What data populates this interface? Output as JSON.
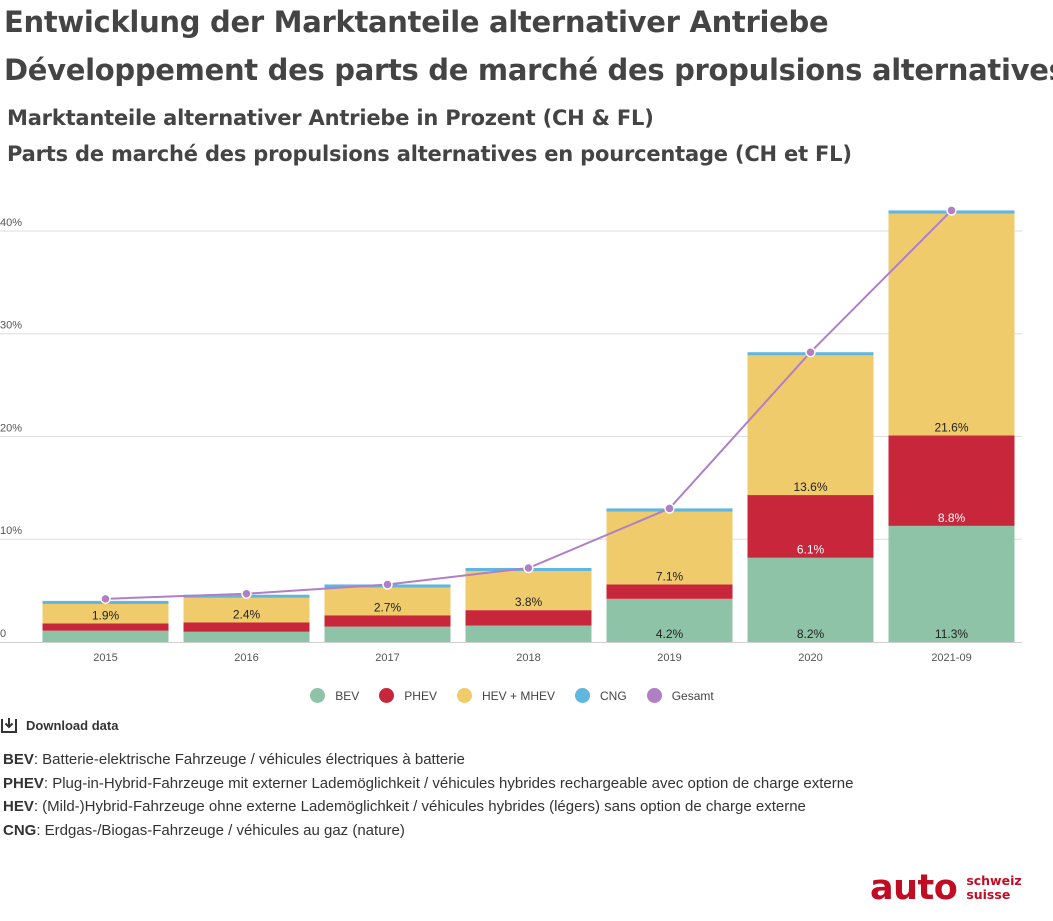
{
  "header": {
    "title_de": "Entwicklung der Marktanteile alternativer Antriebe",
    "title_fr": "Développement des parts de marché des propulsions alternatives",
    "subtitle_de": "Marktanteile alternativer Antriebe in Prozent (CH & FL)",
    "subtitle_fr": "Parts de marché des propulsions alternatives en pourcentage (CH et FL)"
  },
  "chart_data": {
    "type": "bar",
    "stacked": true,
    "categories": [
      "2015",
      "2016",
      "2017",
      "2018",
      "2019",
      "2020",
      "2021-09"
    ],
    "series": [
      {
        "name": "BEV",
        "color": "#8fc3a7",
        "values": [
          1.1,
          1.0,
          1.5,
          1.6,
          4.2,
          8.2,
          11.3
        ],
        "labels": [
          "",
          "",
          "",
          "",
          "4.2%",
          "8.2%",
          "11.3%"
        ]
      },
      {
        "name": "PHEV",
        "color": "#c8263a",
        "values": [
          0.7,
          0.9,
          1.1,
          1.5,
          1.4,
          6.1,
          8.8
        ],
        "labels": [
          "",
          "",
          "",
          "",
          "",
          "6.1%",
          "8.8%"
        ]
      },
      {
        "name": "HEV + MHEV",
        "color": "#efcb6b",
        "values": [
          1.9,
          2.4,
          2.7,
          3.8,
          7.1,
          13.6,
          21.6
        ],
        "labels": [
          "1.9%",
          "2.4%",
          "2.7%",
          "3.8%",
          "7.1%",
          "13.6%",
          "21.6%"
        ]
      },
      {
        "name": "CNG",
        "color": "#5fb6df",
        "values": [
          0.3,
          0.3,
          0.3,
          0.3,
          0.3,
          0.3,
          0.3
        ],
        "labels": [
          "",
          "",
          "",
          "",
          "",
          "",
          ""
        ]
      }
    ],
    "line_series": {
      "name": "Gesamt",
      "color": "#b07fc6",
      "type": "line",
      "values": [
        4.2,
        4.7,
        5.6,
        7.2,
        13.0,
        28.2,
        42.0
      ]
    },
    "yaxis": {
      "ticks": [
        0,
        10,
        20,
        30,
        40
      ],
      "tick_labels": [
        "0",
        "10%",
        "20%",
        "30%",
        "40%"
      ],
      "ylim": [
        0,
        43.5
      ]
    },
    "xlabel": "",
    "ylabel": "",
    "grid": true,
    "legend_position": "bottom"
  },
  "download": {
    "label": "Download data"
  },
  "notes": [
    {
      "term": "BEV",
      "text": ": Batterie-elektrische Fahrzeuge / véhicules électriques à batterie"
    },
    {
      "term": "PHEV",
      "text": ": Plug-in-Hybrid-Fahrzeuge mit externer Lademöglichkeit / véhicules hybrides rechargeable avec option de charge externe"
    },
    {
      "term": "HEV",
      "text": ": (Mild-)Hybrid-Fahrzeuge ohne externe Lademöglichkeit / véhicules hybrides (légers) sans option de charge externe"
    },
    {
      "term": "CNG",
      "text": ": Erdgas-/Biogas-Fahrzeuge / véhicules au gaz (nature)"
    }
  ],
  "logo": {
    "main": "auto",
    "line1": "schweiz",
    "line2": "suisse",
    "color": "#c00d24"
  }
}
